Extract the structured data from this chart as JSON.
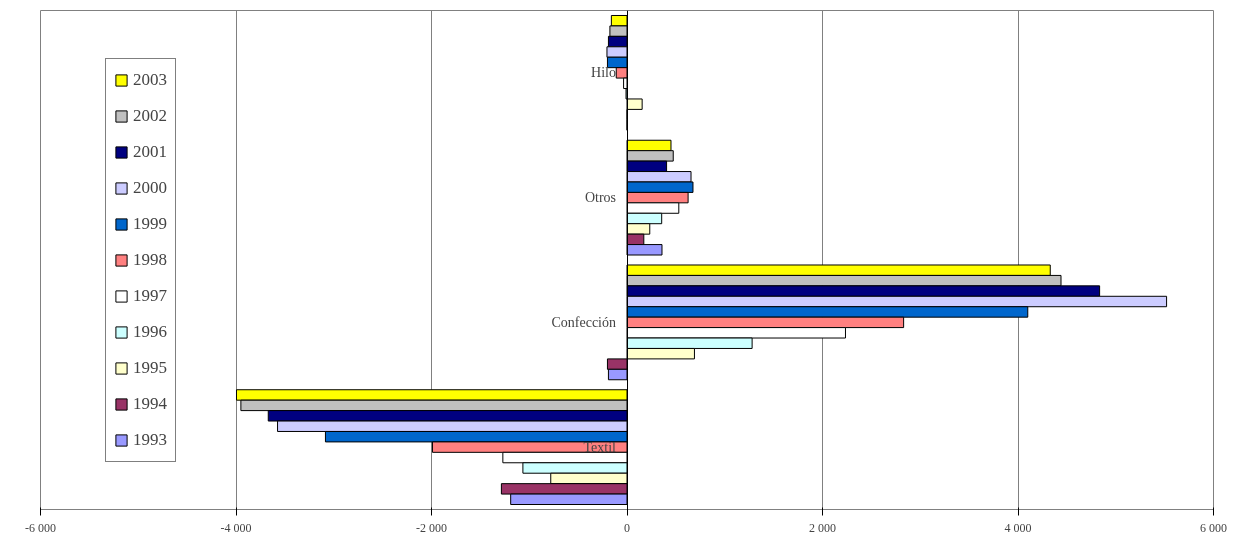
{
  "chart_data": {
    "type": "bar",
    "orientation": "horizontal",
    "categories": [
      "Hilo",
      "Otros",
      "Confección",
      "Textil"
    ],
    "xlim": [
      -6000,
      6000
    ],
    "xticks": [
      {
        "value": -6000,
        "label": "-6 000"
      },
      {
        "value": -4000,
        "label": "-4 000"
      },
      {
        "value": -2000,
        "label": "-2 000"
      },
      0,
      {
        "value": 2000,
        "label": "2 000"
      },
      {
        "value": 4000,
        "label": "4 000"
      },
      {
        "value": 6000,
        "label": "6 000"
      }
    ],
    "grid": "x",
    "legend": "left",
    "series": [
      {
        "name": "2003",
        "color": "#ffff00",
        "values": [
          -160,
          450,
          4330,
          -3995
        ]
      },
      {
        "name": "2002",
        "color": "#c0c0c0",
        "values": [
          -175,
          473,
          4440,
          -3950
        ]
      },
      {
        "name": "2001",
        "color": "#000080",
        "values": [
          -190,
          405,
          4835,
          -3670
        ]
      },
      {
        "name": "2000",
        "color": "#ccccff",
        "values": [
          -205,
          655,
          5520,
          -3575
        ]
      },
      {
        "name": "1999",
        "color": "#0066cc",
        "values": [
          -200,
          675,
          4100,
          -3085
        ]
      },
      {
        "name": "1998",
        "color": "#ff8080",
        "values": [
          -110,
          625,
          2830,
          -1990
        ]
      },
      {
        "name": "1997",
        "color": "#ffffff",
        "values": [
          -35,
          530,
          2235,
          -1270
        ]
      },
      {
        "name": "1996",
        "color": "#ccffff",
        "values": [
          -10,
          355,
          1280,
          -1065
        ]
      },
      {
        "name": "1995",
        "color": "#ffffcc",
        "values": [
          155,
          233,
          690,
          -780
        ]
      },
      {
        "name": "1994",
        "color": "#993366",
        "values": [
          0,
          172,
          -200,
          -1285
        ]
      },
      {
        "name": "1993",
        "color": "#9999ff",
        "values": [
          0,
          358,
          -190,
          -1190
        ]
      }
    ]
  }
}
